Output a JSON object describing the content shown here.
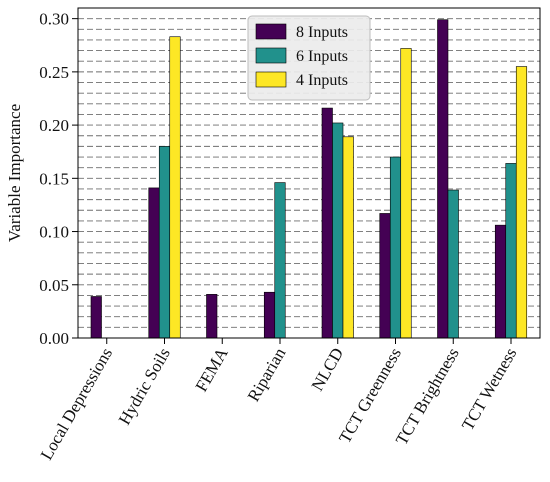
{
  "chart_data": {
    "type": "bar",
    "title": "",
    "xlabel": "",
    "ylabel": "Variable Importance",
    "ylim": [
      0,
      0.31
    ],
    "yticks": [
      0.0,
      0.05,
      0.1,
      0.15,
      0.2,
      0.25,
      0.3
    ],
    "ytick_labels": [
      "0.00",
      "0.05",
      "0.10",
      "0.15",
      "0.20",
      "0.25",
      "0.30"
    ],
    "grid_step": 0.01,
    "grid": "horizontal dashed",
    "legend_position": "top-center",
    "categories": [
      "Local Depressions",
      "Hydric Soils",
      "FEMA",
      "Riparian",
      "NLCD",
      "TCT Greenness",
      "TCT Brightness",
      "TCT Wetness"
    ],
    "series": [
      {
        "name": "8 Inputs",
        "color": "#440154",
        "values": [
          0.039,
          0.141,
          0.041,
          0.043,
          0.216,
          0.117,
          0.299,
          0.106
        ]
      },
      {
        "name": "6 Inputs",
        "color": "#21918c",
        "values": [
          0.0,
          0.18,
          0.0,
          0.146,
          0.202,
          0.17,
          0.139,
          0.164
        ]
      },
      {
        "name": "4 Inputs",
        "color": "#fde725",
        "values": [
          0.0,
          0.283,
          0.0,
          0.0,
          0.189,
          0.272,
          0.0,
          0.255
        ]
      }
    ]
  }
}
